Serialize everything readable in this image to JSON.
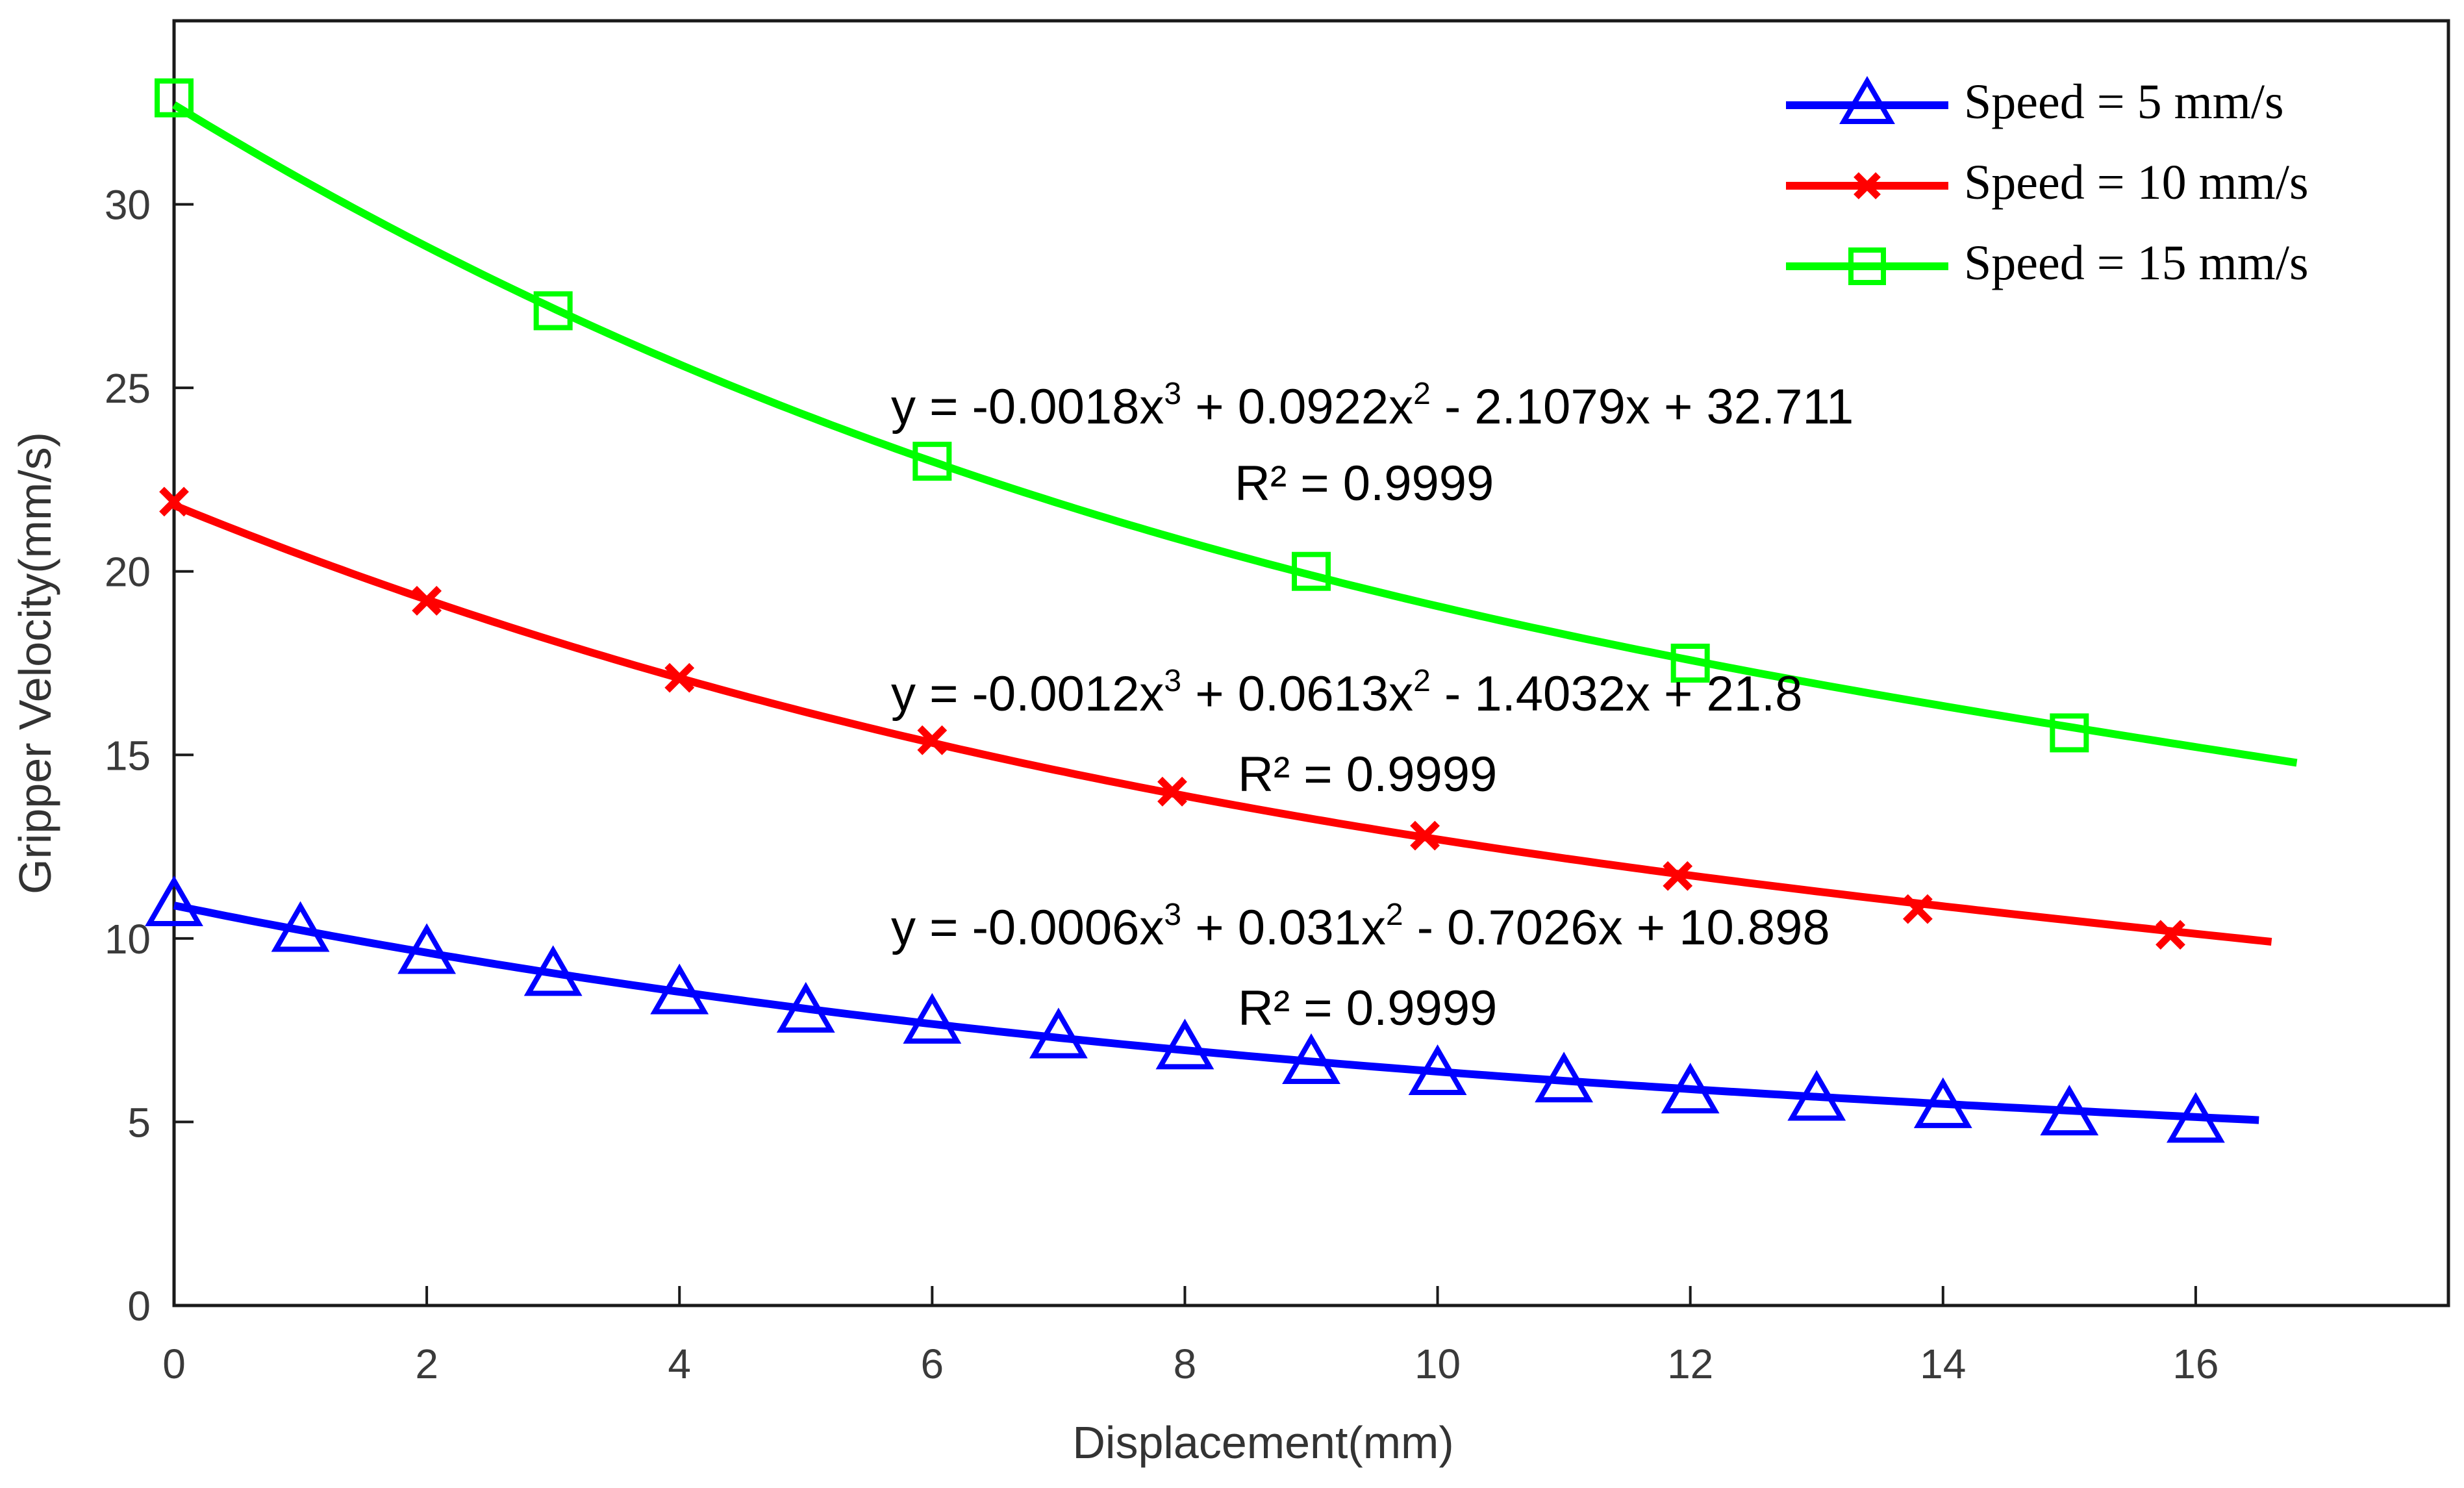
{
  "chart_data": {
    "type": "line",
    "title": "",
    "xlabel": "Displacement(mm)",
    "ylabel": "Gripper Velocity(mm/s)",
    "xlim": [
      0,
      18
    ],
    "ylim": [
      0,
      35
    ],
    "xticks": [
      "0",
      "2",
      "4",
      "6",
      "8",
      "10",
      "12",
      "14",
      "16"
    ],
    "yticks": [
      "0",
      "5",
      "10",
      "15",
      "20",
      "25",
      "30"
    ],
    "legend_position": "top-right",
    "series": [
      {
        "name": "Speed = 5 mm/s",
        "color": "#0000ff",
        "marker": "triangle",
        "fit": {
          "a3": -0.0006,
          "a2": 0.031,
          "a1": -0.7026,
          "a0": 10.898,
          "x_end": 16.5
        },
        "x": [
          0,
          1,
          2,
          3,
          4,
          5,
          6,
          7,
          8,
          9,
          10,
          11,
          12,
          13,
          14,
          15,
          16
        ],
        "values": [
          10.9,
          10.2,
          9.6,
          9.0,
          8.5,
          8.0,
          7.7,
          7.3,
          7.0,
          6.6,
          6.3,
          6.1,
          5.8,
          5.6,
          5.4,
          5.2,
          5.0
        ]
      },
      {
        "name": "Speed = 10 mm/s",
        "color": "#ff0000",
        "marker": "x",
        "fit": {
          "a3": -0.0012,
          "a2": 0.0613,
          "a1": -1.4032,
          "a0": 21.8,
          "x_end": 16.6
        },
        "x": [
          0,
          2,
          4,
          6,
          7.9,
          9.9,
          11.9,
          13.8,
          15.8
        ],
        "values": [
          21.9,
          19.2,
          17.1,
          15.4,
          14.0,
          12.8,
          11.7,
          10.8,
          10.1
        ]
      },
      {
        "name": "Speed = 15 mm/s",
        "color": "#00ff00",
        "marker": "square",
        "fit": {
          "a3": -0.0018,
          "a2": 0.0922,
          "a1": -2.1079,
          "a0": 32.711,
          "x_end": 16.8
        },
        "x": [
          0,
          3,
          6,
          9,
          12,
          15
        ],
        "values": [
          32.9,
          27.1,
          23.0,
          20.0,
          17.5,
          15.6
        ]
      }
    ],
    "annotations": [
      {
        "eq_before_sup1": "y = -0.0018x",
        "sup1": "3",
        "eq_mid": " + 0.0922x",
        "sup2": "2",
        "eq_after": " - 2.1079x + 32.711",
        "r2": "R² = 0.9999"
      },
      {
        "eq_before_sup1": "y = -0.0012x",
        "sup1": "3",
        "eq_mid": " + 0.0613x",
        "sup2": "2",
        "eq_after": " - 1.4032x + 21.8",
        "r2": "R² = 0.9999"
      },
      {
        "eq_before_sup1": "y = -0.0006x",
        "sup1": "3",
        "eq_mid": " + 0.031x",
        "sup2": "2",
        "eq_after": " - 0.7026x + 10.898",
        "r2": "R² = 0.9999"
      }
    ]
  }
}
